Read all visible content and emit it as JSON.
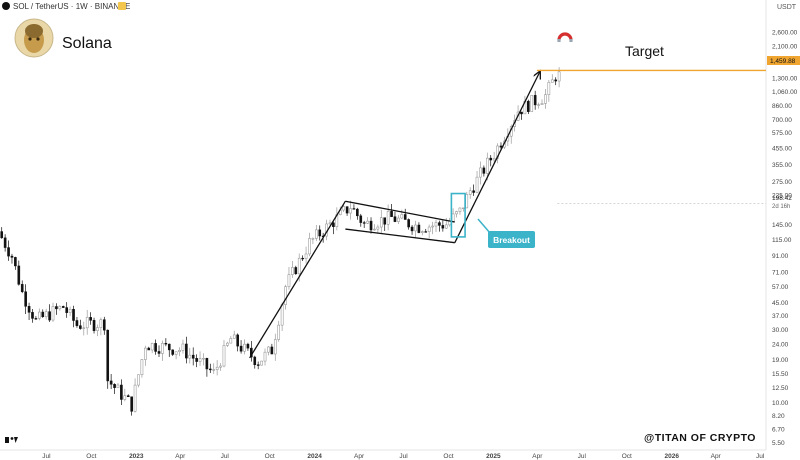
{
  "header": {
    "symbol_title": "SOL / TetherUS · 1W · BINANCE",
    "chart_name": "Solana",
    "currency": "USDT"
  },
  "annotations": {
    "target_label": "Target",
    "target_price": "1,459.88",
    "current_price": "198.42",
    "countdown": "2d 16h",
    "breakout_label": "Breakout",
    "watermark": "@TITAN OF CRYPTO"
  },
  "colors": {
    "up": "#b8b8b8",
    "down": "#111111",
    "target_line": "#f0a530",
    "breakout_box": "#3bb3c9",
    "arrow": "#111111"
  },
  "chart_data": {
    "type": "candlestick",
    "title": "Solana",
    "scale": "log",
    "ylim": [
      4.9,
      4200
    ],
    "y_ticks": [
      "4,200.00",
      "2,600.00",
      "2,100.00",
      "1,700.00",
      "1,300.00",
      "1,060.00",
      "860.00",
      "700.00",
      "575.00",
      "455.00",
      "355.00",
      "275.00",
      "225.00",
      "145.00",
      "115.00",
      "91.00",
      "71.00",
      "57.00",
      "45.00",
      "37.00",
      "30.00",
      "24.00",
      "19.00",
      "15.50",
      "12.50",
      "10.00",
      "8.20",
      "6.70",
      "5.50"
    ],
    "x_ticks": [
      "Apr",
      "Jul",
      "Oct",
      "2023",
      "Apr",
      "Jul",
      "Oct",
      "2024",
      "Apr",
      "Jul",
      "Oct",
      "2025",
      "Apr",
      "Jul",
      "Oct",
      "2026",
      "Apr",
      "Jul"
    ],
    "x_range": [
      "2022-03-28",
      "2026-07-13"
    ],
    "anchors": [
      {
        "date": "2022-03-28",
        "price": 130
      },
      {
        "date": "2022-04-25",
        "price": 90
      },
      {
        "date": "2022-05-16",
        "price": 52
      },
      {
        "date": "2022-06-13",
        "price": 34
      },
      {
        "date": "2022-08-08",
        "price": 42
      },
      {
        "date": "2022-09-05",
        "price": 32
      },
      {
        "date": "2022-10-31",
        "price": 33
      },
      {
        "date": "2022-11-07",
        "price": 14
      },
      {
        "date": "2022-12-26",
        "price": 9.6
      },
      {
        "date": "2023-01-23",
        "price": 24
      },
      {
        "date": "2023-04-10",
        "price": 22
      },
      {
        "date": "2023-06-12",
        "price": 15.5
      },
      {
        "date": "2023-07-17",
        "price": 26
      },
      {
        "date": "2023-09-11",
        "price": 18.5
      },
      {
        "date": "2023-10-09",
        "price": 22
      },
      {
        "date": "2023-11-06",
        "price": 57
      },
      {
        "date": "2023-12-25",
        "price": 110
      },
      {
        "date": "2024-03-18",
        "price": 190
      },
      {
        "date": "2024-04-15",
        "price": 145
      },
      {
        "date": "2024-06-10",
        "price": 160
      },
      {
        "date": "2024-08-05",
        "price": 140
      },
      {
        "date": "2024-09-30",
        "price": 145
      },
      {
        "date": "2024-10-28",
        "price": 175
      },
      {
        "date": "2024-11-18",
        "price": 240
      },
      {
        "date": "2025-01-06",
        "price": 420
      },
      {
        "date": "2025-02-24",
        "price": 800
      },
      {
        "date": "2025-03-24",
        "price": 900
      },
      {
        "date": "2025-04-21",
        "price": 1000
      },
      {
        "date": "2025-05-12",
        "price": 1350
      }
    ],
    "channel": {
      "upper": [
        {
          "date": "2024-03-04",
          "price": 205
        },
        {
          "date": "2024-10-14",
          "price": 150
        }
      ],
      "lower": [
        {
          "date": "2024-03-04",
          "price": 135
        },
        {
          "date": "2024-10-14",
          "price": 110
        }
      ]
    },
    "arrows": [
      {
        "from": {
          "date": "2023-08-21",
          "price": 19.5
        },
        "to": {
          "date": "2024-03-04",
          "price": 205
        }
      },
      {
        "from": {
          "date": "2024-10-14",
          "price": 110
        },
        "to": {
          "date": "2025-04-07",
          "price": 1450
        }
      }
    ],
    "target": {
      "price": 1459.88,
      "from_date": "2025-03-31"
    },
    "breakout_box": {
      "from_date": "2024-10-07",
      "to_date": "2024-11-04",
      "low": 120,
      "high": 230
    }
  }
}
